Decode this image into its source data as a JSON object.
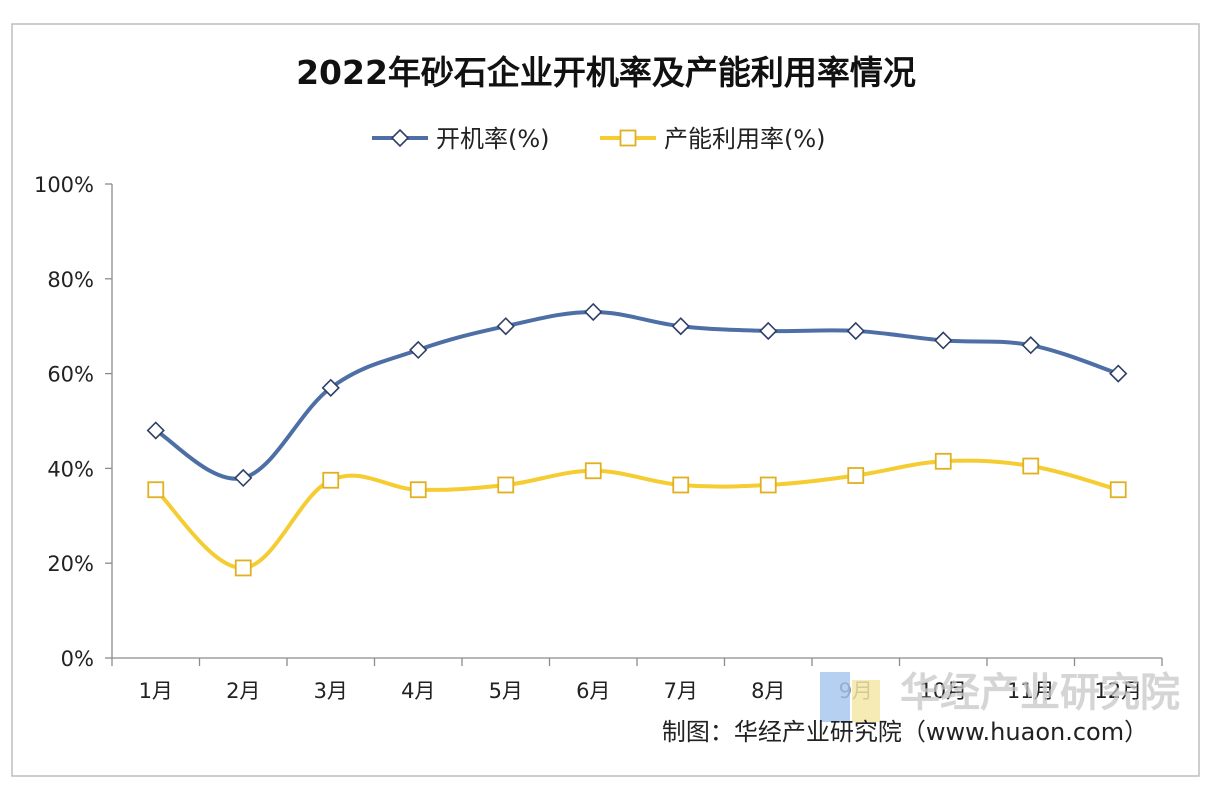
{
  "chart_data": {
    "type": "line",
    "title": "2022年砂石企业开机率及产能利用率情况",
    "categories": [
      "1月",
      "2月",
      "3月",
      "4月",
      "5月",
      "6月",
      "7月",
      "8月",
      "9月",
      "10月",
      "11月",
      "12月"
    ],
    "series": [
      {
        "name": "开机率(%)",
        "color": "#4e6fa6",
        "marker": "diamond",
        "values": [
          48,
          38,
          57,
          65,
          70,
          73,
          70,
          69,
          69,
          67,
          66,
          60
        ]
      },
      {
        "name": "产能利用率(%)",
        "color": "#f5cc32",
        "marker": "square",
        "values": [
          35.5,
          19,
          37.5,
          35.5,
          36.5,
          39.5,
          36.5,
          36.5,
          38.5,
          41.5,
          40.5,
          35.5
        ]
      }
    ],
    "ylim": [
      0,
      100
    ],
    "yticks": [
      "0%",
      "20%",
      "40%",
      "60%",
      "80%",
      "100%"
    ],
    "grid": false,
    "legend_position": "top"
  },
  "source_note": "制图：华经产业研究院（www.huaon.com）",
  "watermark": "华经产业研究院"
}
